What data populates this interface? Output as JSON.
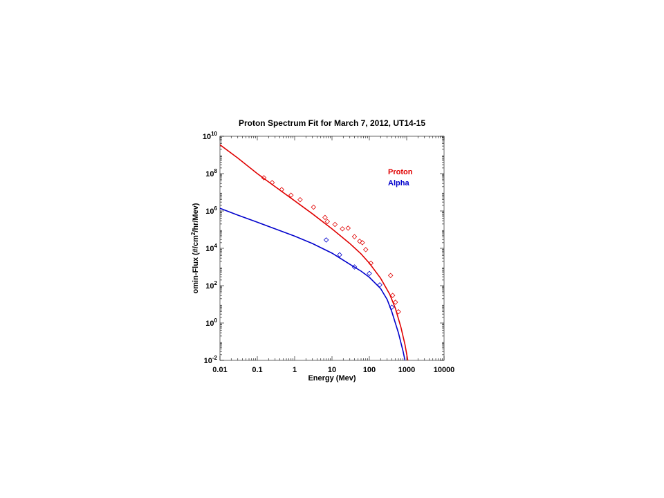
{
  "chart_data": {
    "type": "scatter",
    "title": "Proton Spectrum Fit for March 7, 2012, UT14-15",
    "xlabel": "Energy (Mev)",
    "ylabel": "omin-Flux (#/cm²/hr/Mev)",
    "ylabel_parts": [
      "omin-Flux (#/cm",
      "2",
      "/hr/Mev)"
    ],
    "x_scale": "log",
    "y_scale": "log",
    "xlim": [
      0.01,
      10000
    ],
    "ylim": [
      0.01,
      10000000000
    ],
    "x_ticks": [
      "0.01",
      "0.1",
      "1",
      "10",
      "100",
      "1000",
      "10000"
    ],
    "x_tick_values": [
      0.01,
      0.1,
      1,
      10,
      100,
      1000,
      10000
    ],
    "y_ticks": [
      {
        "value": 0.01,
        "base": "10",
        "exp": "-2"
      },
      {
        "value": 1,
        "base": "10",
        "exp": "0"
      },
      {
        "value": 100,
        "base": "10",
        "exp": "2"
      },
      {
        "value": 10000,
        "base": "10",
        "exp": "4"
      },
      {
        "value": 1000000,
        "base": "10",
        "exp": "6"
      },
      {
        "value": 100000000,
        "base": "10",
        "exp": "8"
      },
      {
        "value": 10000000000,
        "base": "10",
        "exp": "10"
      }
    ],
    "legend_position": "top-right",
    "series": [
      {
        "name": "Proton",
        "color": "#e00000",
        "marker": "diamond",
        "points": [
          [
            0.15,
            60000000.0
          ],
          [
            0.25,
            33000000.0
          ],
          [
            0.45,
            14000000.0
          ],
          [
            0.8,
            7000000.0
          ],
          [
            1.4,
            4000000.0
          ],
          [
            3.2,
            1600000.0
          ],
          [
            6.5,
            450000.0
          ],
          [
            7.5,
            270000.0
          ],
          [
            12,
            190000.0
          ],
          [
            19,
            110000.0
          ],
          [
            27,
            120000.0
          ],
          [
            40,
            42000.0
          ],
          [
            55,
            24000.0
          ],
          [
            65,
            20000.0
          ],
          [
            80,
            8500.0
          ],
          [
            110,
            1600.0
          ],
          [
            370,
            350.0
          ],
          [
            420,
            30.0
          ],
          [
            500,
            13.0
          ],
          [
            600,
            4.0
          ]
        ],
        "fit": [
          [
            0.01,
            3500000000.0
          ],
          [
            0.03,
            680000000.0
          ],
          [
            0.1,
            100000000.0
          ],
          [
            0.3,
            20000000.0
          ],
          [
            1,
            3500000.0
          ],
          [
            3,
            700000.0
          ],
          [
            10,
            110000.0
          ],
          [
            30,
            18000.0
          ],
          [
            60,
            5000.0
          ],
          [
            100,
            1600.0
          ],
          [
            200,
            250.0
          ],
          [
            350,
            35.0
          ],
          [
            500,
            6.0
          ],
          [
            700,
            0.6
          ],
          [
            900,
            0.07
          ],
          [
            1070,
            0.01
          ]
        ]
      },
      {
        "name": "Alpha",
        "color": "#0000cc",
        "marker": "diamond",
        "points": [
          [
            7,
            28000.0
          ],
          [
            16,
            4500.0
          ],
          [
            40,
            1000.0
          ],
          [
            100,
            450.0
          ],
          [
            190,
            110.0
          ],
          [
            400,
            7.0
          ]
        ],
        "fit": [
          [
            0.01,
            1400000.0
          ],
          [
            0.03,
            600000.0
          ],
          [
            0.1,
            250000.0
          ],
          [
            0.3,
            110000.0
          ],
          [
            1,
            45000.0
          ],
          [
            3,
            18000.0
          ],
          [
            10,
            5500.0
          ],
          [
            30,
            1400.0
          ],
          [
            60,
            600.0
          ],
          [
            100,
            280.0
          ],
          [
            200,
            70.0
          ],
          [
            300,
            18.0
          ],
          [
            400,
            4.0
          ],
          [
            600,
            0.3
          ],
          [
            800,
            0.03
          ],
          [
            900,
            0.01
          ]
        ]
      }
    ]
  }
}
